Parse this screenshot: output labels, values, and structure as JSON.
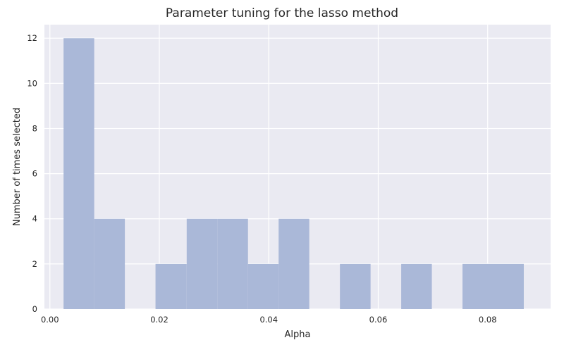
{
  "chart_data": {
    "type": "bar",
    "title": "Parameter tuning for the lasso method",
    "xlabel": "Alpha",
    "ylabel": "Number of times selected",
    "xlim": [
      -0.001,
      0.0915
    ],
    "ylim": [
      0,
      12.6
    ],
    "grid": true,
    "legend": "none",
    "x_ticks": [
      0.0,
      0.02,
      0.04,
      0.06,
      0.08
    ],
    "x_tick_labels": [
      "0.00",
      "0.02",
      "0.04",
      "0.06",
      "0.08"
    ],
    "y_ticks": [
      0,
      2,
      4,
      6,
      8,
      10,
      12
    ],
    "y_tick_labels": [
      "0",
      "2",
      "4",
      "6",
      "8",
      "10",
      "12"
    ],
    "bins": [
      {
        "x0": 0.0025,
        "x1": 0.0081,
        "count": 12
      },
      {
        "x0": 0.0081,
        "x1": 0.0137,
        "count": 4
      },
      {
        "x0": 0.0137,
        "x1": 0.0193,
        "count": 0
      },
      {
        "x0": 0.0193,
        "x1": 0.025,
        "count": 2
      },
      {
        "x0": 0.025,
        "x1": 0.0306,
        "count": 4
      },
      {
        "x0": 0.0306,
        "x1": 0.0362,
        "count": 4
      },
      {
        "x0": 0.0362,
        "x1": 0.0418,
        "count": 2
      },
      {
        "x0": 0.0418,
        "x1": 0.0474,
        "count": 4
      },
      {
        "x0": 0.0474,
        "x1": 0.053,
        "count": 0
      },
      {
        "x0": 0.053,
        "x1": 0.0586,
        "count": 2
      },
      {
        "x0": 0.0586,
        "x1": 0.0642,
        "count": 0
      },
      {
        "x0": 0.0642,
        "x1": 0.0698,
        "count": 2
      },
      {
        "x0": 0.0698,
        "x1": 0.0754,
        "count": 0
      },
      {
        "x0": 0.0754,
        "x1": 0.081,
        "count": 2
      },
      {
        "x0": 0.081,
        "x1": 0.0866,
        "count": 2
      }
    ]
  },
  "colors": {
    "background": "#eaeaf2",
    "grid": "#ffffff",
    "bar": "#aab8d8",
    "text": "#262626"
  }
}
